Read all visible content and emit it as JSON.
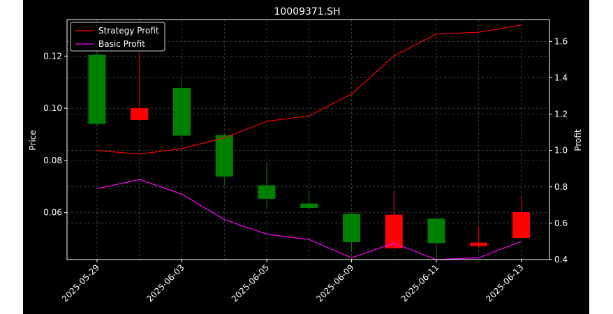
{
  "chart_data": {
    "type": "candlestick",
    "title": "10009371.SH",
    "xlabel": "",
    "ylabel_left": "Price",
    "ylabel_right": "Profit",
    "x_tick_labels": [
      "2025-05-29",
      "2025-06-03",
      "2025-06-05",
      "2025-06-09",
      "2025-06-11",
      "2025-06-13"
    ],
    "x_tick_index": [
      0,
      2,
      4,
      6,
      8,
      10
    ],
    "y_left": {
      "range": [
        0.042,
        0.134
      ],
      "ticks": [
        0.06,
        0.08,
        0.1,
        0.12
      ],
      "tick_labels": [
        "0.06",
        "0.08",
        "0.10",
        "0.12"
      ]
    },
    "y_right": {
      "range": [
        0.4,
        1.72
      ],
      "ticks": [
        0.4,
        0.6,
        0.8,
        1.0,
        1.2,
        1.4,
        1.6
      ],
      "tick_labels": [
        "0.4",
        "0.6",
        "0.8",
        "1.0",
        "1.2",
        "1.4",
        "1.6"
      ]
    },
    "grid": true,
    "legend": {
      "placement": "top-left",
      "entries": [
        "Strategy Profit",
        "Basic Profit"
      ]
    },
    "colors": {
      "up": "#008000",
      "down": "#ff0000",
      "strategy": "#ff0000",
      "basic": "#ff00ff",
      "background": "#000000",
      "axes": "#ffffff"
    },
    "candles": [
      {
        "open": 0.094,
        "close": 0.1205,
        "high": 0.1225,
        "low": 0.093
      },
      {
        "open": 0.1,
        "close": 0.0955,
        "high": 0.1215,
        "low": 0.0955
      },
      {
        "open": 0.0895,
        "close": 0.1078,
        "high": 0.111,
        "low": 0.088
      },
      {
        "open": 0.0738,
        "close": 0.0897,
        "high": 0.09,
        "low": 0.07
      },
      {
        "open": 0.0653,
        "close": 0.0705,
        "high": 0.0795,
        "low": 0.062
      },
      {
        "open": 0.0618,
        "close": 0.0635,
        "high": 0.0683,
        "low": 0.0618
      },
      {
        "open": 0.0487,
        "close": 0.0595,
        "high": 0.0595,
        "low": 0.0452
      },
      {
        "open": 0.0592,
        "close": 0.0463,
        "high": 0.0683,
        "low": 0.0463
      },
      {
        "open": 0.0483,
        "close": 0.0577,
        "high": 0.0577,
        "low": 0.0425
      },
      {
        "open": 0.0485,
        "close": 0.0472,
        "high": 0.0548,
        "low": 0.0462
      },
      {
        "open": 0.0602,
        "close": 0.0503,
        "high": 0.0665,
        "low": 0.0503
      }
    ],
    "series": [
      {
        "name": "Strategy Profit",
        "values": [
          1.0,
          0.98,
          1.01,
          1.07,
          1.16,
          1.19,
          1.31,
          1.52,
          1.64,
          1.65,
          1.69
        ]
      },
      {
        "name": "Basic Profit",
        "values": [
          0.79,
          0.84,
          0.76,
          0.62,
          0.54,
          0.51,
          0.41,
          0.49,
          0.4,
          0.41,
          0.5
        ]
      }
    ]
  }
}
